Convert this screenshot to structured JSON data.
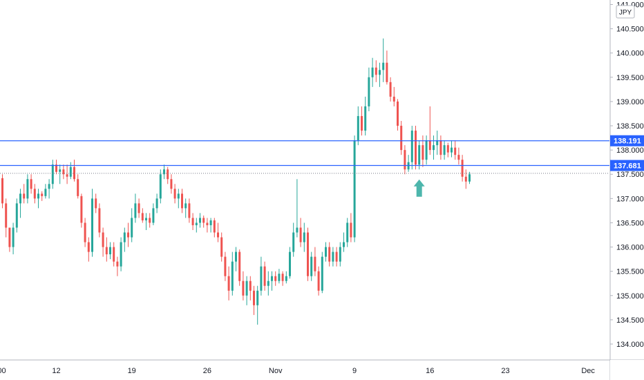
{
  "currency": "JPY",
  "colors": {
    "up": "#26a69a",
    "down": "#ef5350",
    "level_line": "#2962ff",
    "current_price_line": "#787b86",
    "arrow": "#4db6ac"
  },
  "chart_data": {
    "type": "candlestick",
    "title": "",
    "xlabel": "",
    "ylabel": "",
    "ylim": [
      133.9,
      141.05
    ],
    "grid": false,
    "y_ticks": [
      "134.000",
      "134.500",
      "135.000",
      "135.500",
      "136.000",
      "136.500",
      "137.000",
      "137.500",
      "138.000",
      "138.500",
      "139.000",
      "139.500",
      "140.000",
      "140.500",
      "141.000"
    ],
    "x_ticks": [
      {
        "label": ":00",
        "bar": -0.5
      },
      {
        "label": "12",
        "bar": 15
      },
      {
        "label": "19",
        "bar": 36
      },
      {
        "label": "26",
        "bar": 57
      },
      {
        "label": "Nov",
        "bar": 76
      },
      {
        "label": "9",
        "bar": 98
      },
      {
        "label": "16",
        "bar": 119
      },
      {
        "label": "23",
        "bar": 140
      },
      {
        "label": "Dec",
        "bar": 163
      }
    ],
    "levels": [
      {
        "label": "138.191",
        "value": 138.191
      },
      {
        "label": "137.681",
        "value": 137.681
      }
    ],
    "current_price": 137.52,
    "marker": {
      "name": "up-arrow",
      "bar": 116,
      "value": 137.45
    },
    "series": [
      {
        "ohlc": [
          [
            137.42,
            137.5,
            136.8,
            136.9
          ],
          [
            136.9,
            137.0,
            136.2,
            136.4
          ],
          [
            136.4,
            136.4,
            135.9,
            136.0
          ],
          [
            136.0,
            136.5,
            135.85,
            136.4
          ],
          [
            136.4,
            137.0,
            136.3,
            136.9
          ],
          [
            136.9,
            137.2,
            136.6,
            137.1
          ],
          [
            137.1,
            137.3,
            136.9,
            137.0
          ],
          [
            137.0,
            137.5,
            136.9,
            137.4
          ],
          [
            137.4,
            137.5,
            137.1,
            137.2
          ],
          [
            137.2,
            137.3,
            136.9,
            137.0
          ],
          [
            137.0,
            137.2,
            136.8,
            137.1
          ],
          [
            137.1,
            137.15,
            136.95,
            137.05
          ],
          [
            137.05,
            137.3,
            137.0,
            137.2
          ],
          [
            137.2,
            137.4,
            137.0,
            137.3
          ],
          [
            137.3,
            137.8,
            137.2,
            137.7
          ],
          [
            137.7,
            137.8,
            137.5,
            137.55
          ],
          [
            137.55,
            137.7,
            137.3,
            137.6
          ],
          [
            137.6,
            137.7,
            137.4,
            137.5
          ],
          [
            137.5,
            137.7,
            137.3,
            137.45
          ],
          [
            137.45,
            137.75,
            137.4,
            137.65
          ],
          [
            137.65,
            137.8,
            137.35,
            137.4
          ],
          [
            137.4,
            137.5,
            137.0,
            137.05
          ],
          [
            137.05,
            137.1,
            136.4,
            136.5
          ],
          [
            136.5,
            136.6,
            136.0,
            136.1
          ],
          [
            136.1,
            136.2,
            135.7,
            135.9
          ],
          [
            135.9,
            137.2,
            135.8,
            137.0
          ],
          [
            137.0,
            137.1,
            136.7,
            136.8
          ],
          [
            136.8,
            136.9,
            136.2,
            136.3
          ],
          [
            136.3,
            136.4,
            135.8,
            136.0
          ],
          [
            136.0,
            136.2,
            135.7,
            135.85
          ],
          [
            135.85,
            136.1,
            135.75,
            136.0
          ],
          [
            136.0,
            136.1,
            135.6,
            135.7
          ],
          [
            135.7,
            135.8,
            135.4,
            135.6
          ],
          [
            135.6,
            136.2,
            135.5,
            136.1
          ],
          [
            136.1,
            136.4,
            135.9,
            136.3
          ],
          [
            136.3,
            136.5,
            136.0,
            136.2
          ],
          [
            136.2,
            136.8,
            136.1,
            136.6
          ],
          [
            136.6,
            137.1,
            136.5,
            136.9
          ],
          [
            136.9,
            137.0,
            136.6,
            136.7
          ],
          [
            136.7,
            136.8,
            136.5,
            136.55
          ],
          [
            136.55,
            136.7,
            136.35,
            136.6
          ],
          [
            136.6,
            136.7,
            136.4,
            136.5
          ],
          [
            136.5,
            136.9,
            136.45,
            136.8
          ],
          [
            136.8,
            137.1,
            136.7,
            137.0
          ],
          [
            137.0,
            137.6,
            136.9,
            137.5
          ],
          [
            137.5,
            137.7,
            137.4,
            137.6
          ],
          [
            137.6,
            137.65,
            137.3,
            137.4
          ],
          [
            137.4,
            137.5,
            137.1,
            137.2
          ],
          [
            137.2,
            137.3,
            136.9,
            137.0
          ],
          [
            137.0,
            137.2,
            136.8,
            137.1
          ],
          [
            137.1,
            137.2,
            136.7,
            136.8
          ],
          [
            136.8,
            137.0,
            136.6,
            136.9
          ],
          [
            136.9,
            137.0,
            136.5,
            136.6
          ],
          [
            136.6,
            136.7,
            136.35,
            136.45
          ],
          [
            136.45,
            136.6,
            136.3,
            136.5
          ],
          [
            136.5,
            136.7,
            136.4,
            136.6
          ],
          [
            136.6,
            136.65,
            136.4,
            136.5
          ],
          [
            136.5,
            136.6,
            136.3,
            136.45
          ],
          [
            136.45,
            136.6,
            136.3,
            136.55
          ],
          [
            136.55,
            136.6,
            136.2,
            136.3
          ],
          [
            136.3,
            136.5,
            136.1,
            136.2
          ],
          [
            136.2,
            136.3,
            135.7,
            135.8
          ],
          [
            135.8,
            135.9,
            135.3,
            135.4
          ],
          [
            135.4,
            135.6,
            134.9,
            135.1
          ],
          [
            135.1,
            135.9,
            135.0,
            135.7
          ],
          [
            135.7,
            136.0,
            135.5,
            135.9
          ],
          [
            135.9,
            135.95,
            135.2,
            135.3
          ],
          [
            135.3,
            135.5,
            134.9,
            135.0
          ],
          [
            135.0,
            135.4,
            134.8,
            135.3
          ],
          [
            135.3,
            135.4,
            134.9,
            135.1
          ],
          [
            135.1,
            135.2,
            134.6,
            134.8
          ],
          [
            134.8,
            135.2,
            134.4,
            135.1
          ],
          [
            135.1,
            135.8,
            135.0,
            135.6
          ],
          [
            135.6,
            135.7,
            135.1,
            135.2
          ],
          [
            135.2,
            135.5,
            135.0,
            135.3
          ],
          [
            135.3,
            135.5,
            135.1,
            135.4
          ],
          [
            135.4,
            135.5,
            135.2,
            135.3
          ],
          [
            135.3,
            135.55,
            135.25,
            135.45
          ],
          [
            135.45,
            135.5,
            135.2,
            135.3
          ],
          [
            135.3,
            135.5,
            135.25,
            135.4
          ],
          [
            135.4,
            136.0,
            135.35,
            135.9
          ],
          [
            135.9,
            136.5,
            135.8,
            136.3
          ],
          [
            136.3,
            137.4,
            136.2,
            136.4
          ],
          [
            136.4,
            136.6,
            136.0,
            136.1
          ],
          [
            136.1,
            136.5,
            135.9,
            136.3
          ],
          [
            136.3,
            136.4,
            135.3,
            135.4
          ],
          [
            135.4,
            135.9,
            135.3,
            135.8
          ],
          [
            135.8,
            136.0,
            135.4,
            135.5
          ],
          [
            135.5,
            135.6,
            135.0,
            135.1
          ],
          [
            135.1,
            135.9,
            135.05,
            135.8
          ],
          [
            135.8,
            136.1,
            135.7,
            136.0
          ],
          [
            136.0,
            136.1,
            135.6,
            135.7
          ],
          [
            135.7,
            136.0,
            135.6,
            135.9
          ],
          [
            135.9,
            136.0,
            135.6,
            135.7
          ],
          [
            135.7,
            136.1,
            135.6,
            136.0
          ],
          [
            136.0,
            136.3,
            135.9,
            136.1
          ],
          [
            136.1,
            136.6,
            136.0,
            136.5
          ],
          [
            136.5,
            136.7,
            136.1,
            136.2
          ],
          [
            136.2,
            138.3,
            136.1,
            138.2
          ],
          [
            138.2,
            138.9,
            138.1,
            138.7
          ],
          [
            138.7,
            138.9,
            138.3,
            138.4
          ],
          [
            138.4,
            139.1,
            138.3,
            138.9
          ],
          [
            138.9,
            139.7,
            138.8,
            139.5
          ],
          [
            139.5,
            139.9,
            139.3,
            139.7
          ],
          [
            139.7,
            139.85,
            139.4,
            139.55
          ],
          [
            139.55,
            139.8,
            139.3,
            139.65
          ],
          [
            139.65,
            140.3,
            139.4,
            139.8
          ],
          [
            139.8,
            140.05,
            139.35,
            139.4
          ],
          [
            139.4,
            139.5,
            139.0,
            139.1
          ],
          [
            139.1,
            139.3,
            138.9,
            139.0
          ],
          [
            139.0,
            139.05,
            138.4,
            138.5
          ],
          [
            138.5,
            138.6,
            137.9,
            138.0
          ],
          [
            138.0,
            138.1,
            137.5,
            137.6
          ],
          [
            137.6,
            137.9,
            137.55,
            137.75
          ],
          [
            137.75,
            138.5,
            137.6,
            138.4
          ],
          [
            138.4,
            138.5,
            137.6,
            137.7
          ],
          [
            137.7,
            138.2,
            137.6,
            138.1
          ],
          [
            138.1,
            138.3,
            137.65,
            137.8
          ],
          [
            137.8,
            138.3,
            137.7,
            138.2
          ],
          [
            138.2,
            138.9,
            137.9,
            138.0
          ],
          [
            138.0,
            138.3,
            137.8,
            138.1
          ],
          [
            138.1,
            138.4,
            137.9,
            138.2
          ],
          [
            138.2,
            138.3,
            137.8,
            137.9
          ],
          [
            137.9,
            138.2,
            137.8,
            138.1
          ],
          [
            138.1,
            138.15,
            137.85,
            137.95
          ],
          [
            137.95,
            138.2,
            137.85,
            138.05
          ],
          [
            138.05,
            138.2,
            137.8,
            137.9
          ],
          [
            137.9,
            138.05,
            137.7,
            137.8
          ],
          [
            137.8,
            137.9,
            137.35,
            137.45
          ],
          [
            137.45,
            137.6,
            137.2,
            137.35
          ],
          [
            137.35,
            137.55,
            137.3,
            137.5
          ]
        ]
      }
    ]
  }
}
